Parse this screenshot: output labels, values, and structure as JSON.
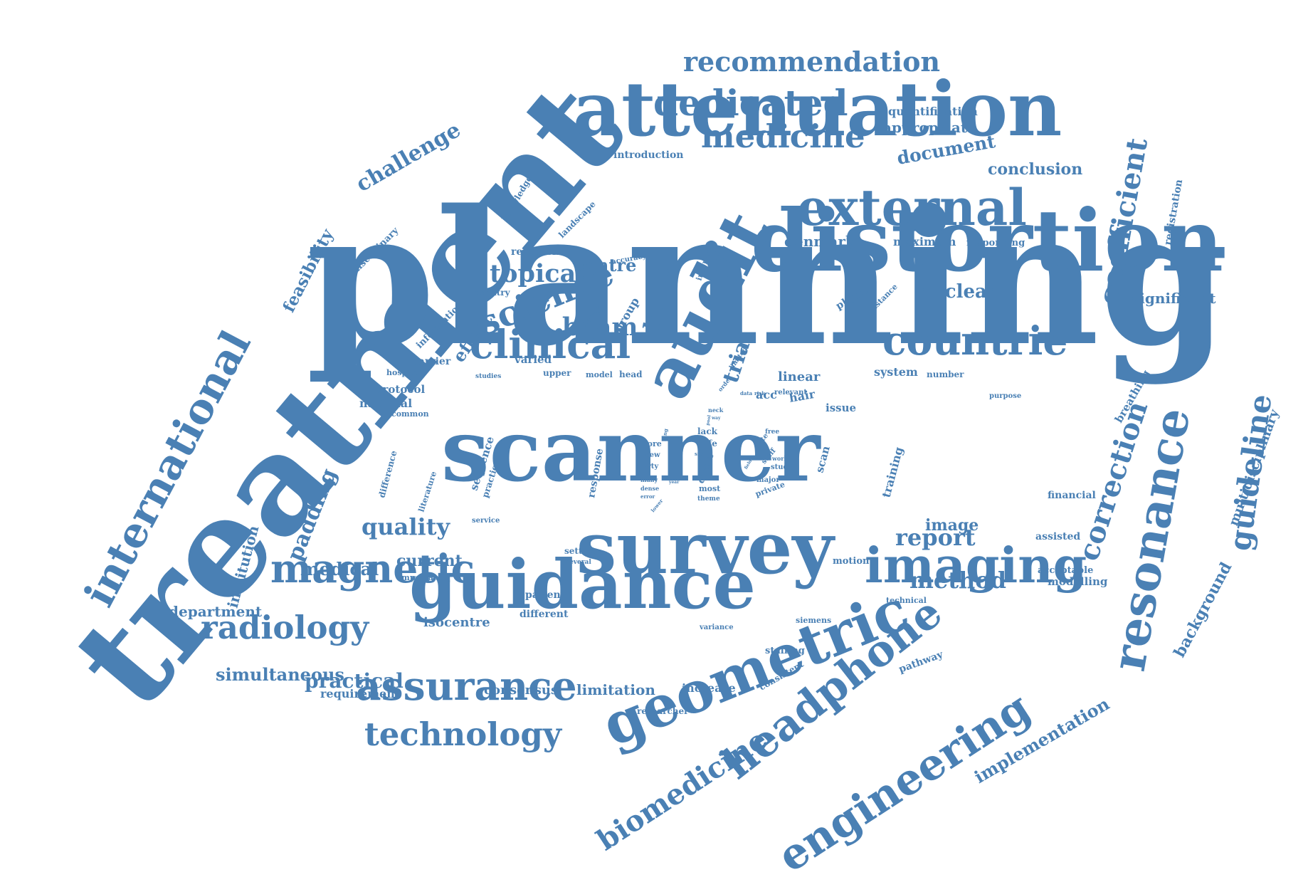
{
  "cloud": {
    "color": "#4a80b4",
    "words": [
      "treatment",
      "planning",
      "distortion",
      "attenuation",
      "scanner",
      "survey",
      "guidance",
      "geometric",
      "imaging",
      "headphone",
      "engineering",
      "audit",
      "external",
      "resonance",
      "clinical",
      "countrie",
      "international",
      "magnetic",
      "assurance",
      "technology",
      "radiology",
      "biomedicine",
      "science",
      "medicine",
      "dedicated",
      "recommendation",
      "coefficient",
      "guideline",
      "correction",
      "brain",
      "beam",
      "trial",
      "topical",
      "quality",
      "report",
      "method",
      "image",
      "nuclear",
      "denmark",
      "centre",
      "challenge",
      "feasibility",
      "padding",
      "institution",
      "medical",
      "current",
      "department",
      "simultaneous",
      "practical",
      "requirement",
      "consensus",
      "limitation",
      "increase",
      "researcher",
      "isocentre",
      "different",
      "patient",
      "implementation",
      "background",
      "multidisciplinary",
      "registration",
      "breathing",
      "significant",
      "conclusion",
      "document",
      "appropriate",
      "quantification",
      "introduction",
      "knowledge",
      "landscape",
      "disciplinary",
      "research",
      "accuracy",
      "country",
      "information",
      "effect",
      "result",
      "group",
      "varied",
      "upper",
      "model",
      "head",
      "barrier",
      "hospital",
      "protocol",
      "national",
      "common",
      "studies",
      "difference",
      "literature",
      "sequence",
      "practice",
      "response",
      "interest",
      "physic",
      "distance",
      "maximum",
      "responding",
      "linear",
      "acc",
      "hair",
      "issue",
      "system",
      "number",
      "relevant",
      "lack",
      "life",
      "more",
      "view",
      "party",
      "many",
      "dense",
      "error",
      "lower",
      "most",
      "theme",
      "direct",
      "site",
      "rate",
      "staff",
      "work",
      "study",
      "major",
      "private",
      "scan",
      "training",
      "financial",
      "assisted",
      "acceptable",
      "modelling",
      "purpose",
      "setting",
      "several",
      "motion",
      "technical",
      "siemens",
      "variance",
      "staffing",
      "consistent",
      "pathway",
      "important",
      "service",
      "free",
      "limited",
      "order",
      "data",
      "risk",
      "neck",
      "pool",
      "lung",
      "year",
      "field",
      "way"
    ]
  }
}
